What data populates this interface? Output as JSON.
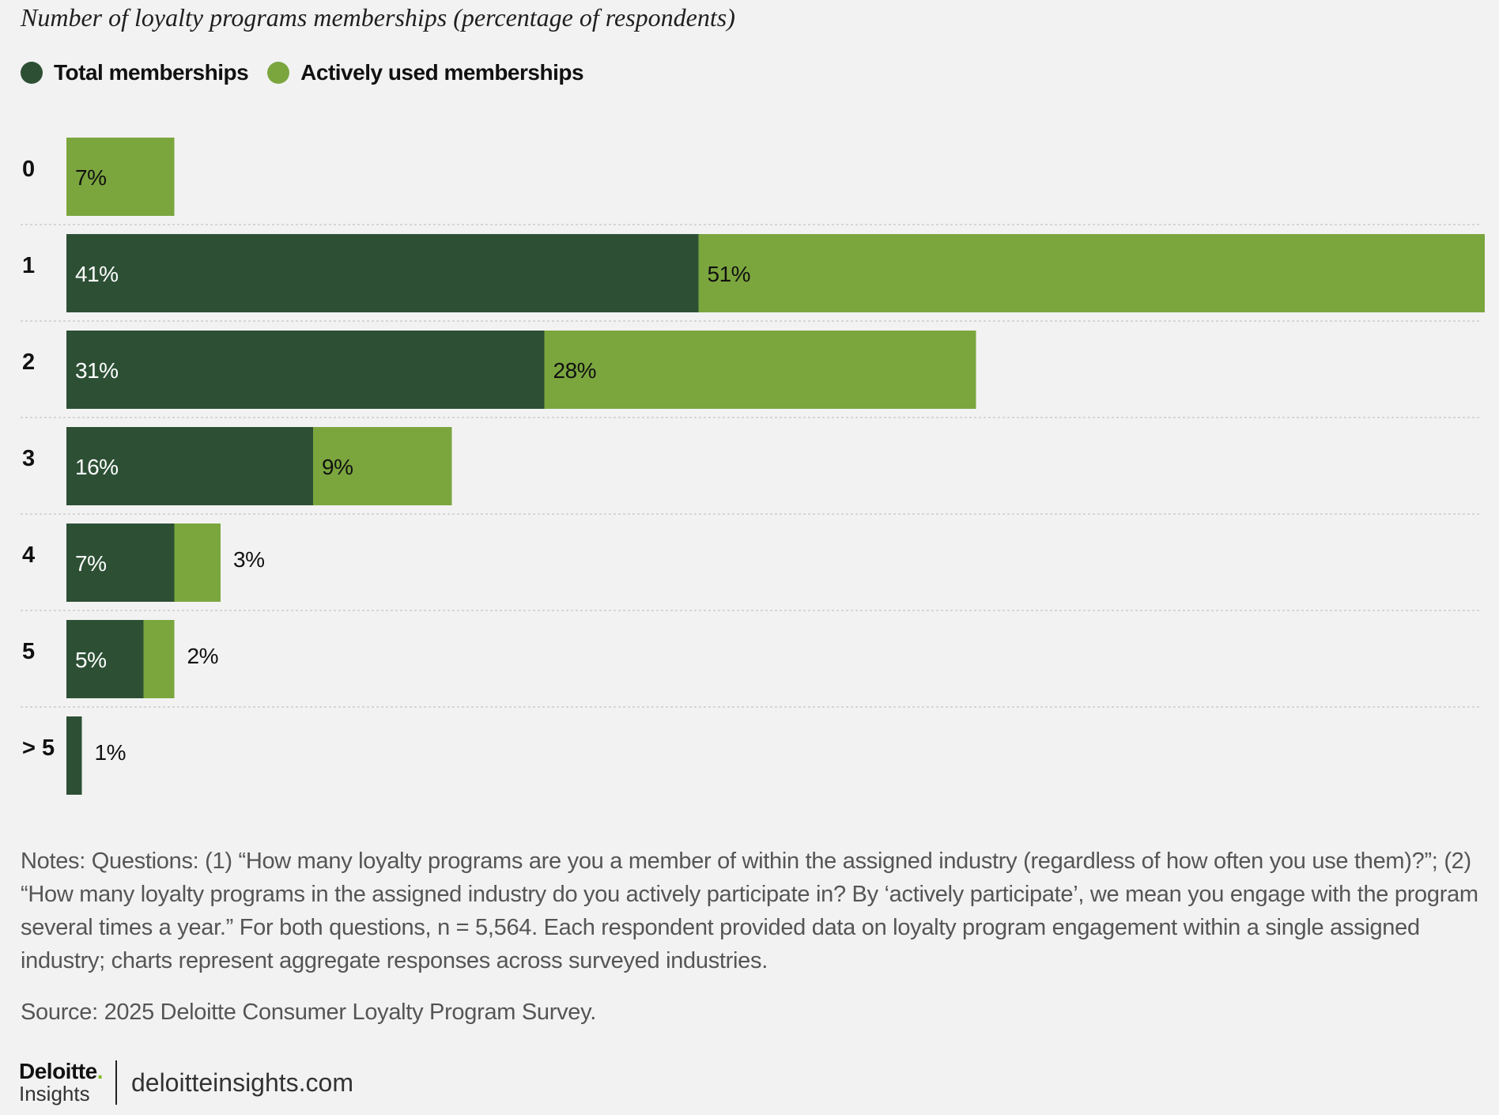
{
  "colors": {
    "total": "#2d5035",
    "active": "#7ba63e",
    "text_dark": "#111111",
    "gridline": "#cccccc"
  },
  "chart_data": {
    "type": "bar",
    "orientation": "horizontal",
    "stacked": true,
    "title": "Number of loyalty programs memberships (percentage of respondents)",
    "categories": [
      "0",
      "1",
      "2",
      "3",
      "4",
      "5",
      "> 5"
    ],
    "series": [
      {
        "name": "Total memberships",
        "values": [
          null,
          41,
          31,
          16,
          7,
          5,
          1
        ],
        "labels": [
          "",
          "41%",
          "31%",
          "16%",
          "7%",
          "5%",
          "1%"
        ]
      },
      {
        "name": "Actively used memberships",
        "values": [
          7,
          51,
          28,
          9,
          3,
          2,
          null
        ],
        "labels": [
          "7%",
          "51%",
          "28%",
          "9%",
          "3%",
          "2%",
          ""
        ]
      }
    ],
    "xlim": [
      0,
      92
    ],
    "grid": "horizontal separators",
    "legend": "top-left"
  },
  "notes": "Notes: Questions: (1) “How many loyalty programs are you a member of within the assigned industry (regardless of how often you use them)?”; (2) “How many loyalty programs in the assigned industry do you actively participate in? By ‘actively participate’, we mean you engage with the program several times a year.” For both questions, n = 5,564. Each respondent provided data on loyalty program engagement within a single assigned industry; charts represent aggregate responses across surveyed industries.",
  "source": "Source: 2025 Deloitte Consumer Loyalty Program Survey.",
  "footer": {
    "logo_word": "Deloitte",
    "logo_dot": ".",
    "logo_sub": "Insights",
    "site": "deloitteinsights.com"
  }
}
